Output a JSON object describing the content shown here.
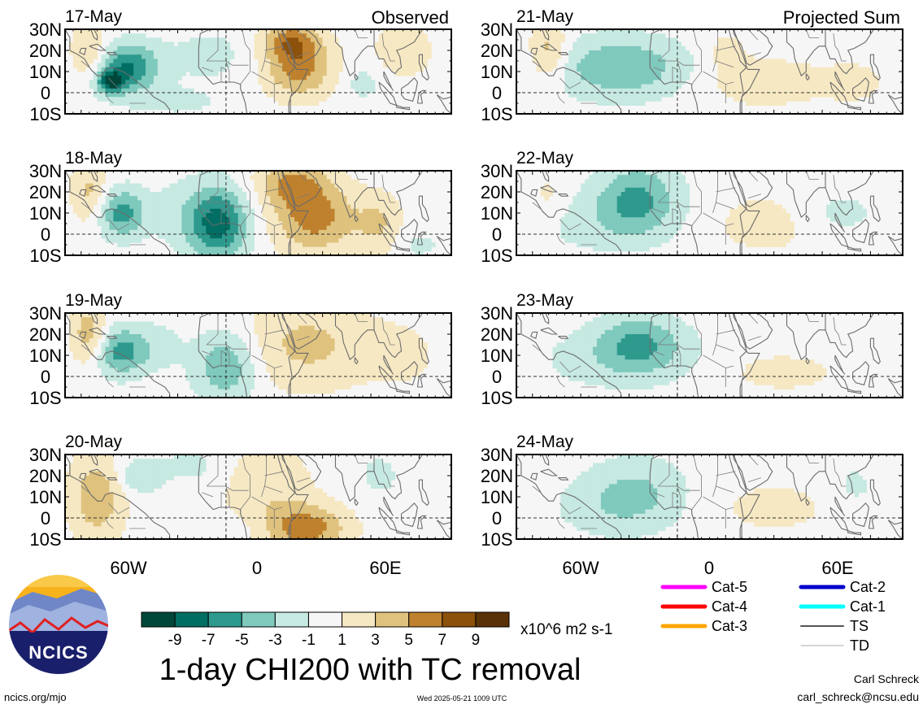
{
  "title": "1-day CHI200 with TC removal",
  "units": "x10^6 m2 s-1",
  "footer": {
    "site": "ncics.org/mjo",
    "timestamp": "Wed 2025-05-21 1009 UTC",
    "author": "Carl Schreck",
    "email": "carl_schreck@ncsu.edu"
  },
  "logo": {
    "text": "NCICS"
  },
  "columns": [
    {
      "heading": "Observed"
    },
    {
      "heading": "Projected Sum"
    }
  ],
  "lat_labels": [
    "30N",
    "20N",
    "10N",
    "0",
    "10S"
  ],
  "lon_labels": [
    "60W",
    "0",
    "60E"
  ],
  "colorbar": {
    "labels": [
      "-9",
      "-7",
      "-5",
      "-3",
      "-1",
      "1",
      "3",
      "5",
      "7",
      "9"
    ],
    "colors": [
      "#00473a",
      "#006e63",
      "#2e9a8e",
      "#7fc9bd",
      "#c6e9e2",
      "#f6f6f6",
      "#f6e8c3",
      "#dfc27d",
      "#bf812d",
      "#8c510a",
      "#5a3207"
    ]
  },
  "tc_legend": [
    {
      "label": "Cat-5",
      "color": "#ff00ff"
    },
    {
      "label": "Cat-2",
      "color": "#0000cc"
    },
    {
      "label": "Cat-4",
      "color": "#ff0000"
    },
    {
      "label": "Cat-1",
      "color": "#00ffff"
    },
    {
      "label": "Cat-3",
      "color": "#ffa500"
    },
    {
      "label": "TS",
      "color": "#555555"
    },
    {
      "label": "TD",
      "color": "#aaaaaa"
    }
  ],
  "panels": [
    {
      "date": "17-May",
      "column": 0,
      "row": 0,
      "blobs": [
        [
          -60,
          12,
          13,
          8,
          -7
        ],
        [
          -72,
          5,
          6,
          4,
          -8
        ],
        [
          -10,
          18,
          20,
          10,
          -1.5
        ],
        [
          45,
          12,
          15,
          10,
          6
        ],
        [
          40,
          25,
          12,
          6,
          5
        ],
        [
          -85,
          20,
          8,
          10,
          3
        ],
        [
          -30,
          -5,
          25,
          6,
          -1.2
        ],
        [
          110,
          20,
          15,
          10,
          2
        ],
        [
          85,
          5,
          8,
          6,
          -2
        ]
      ]
    },
    {
      "date": "21-May",
      "column": 1,
      "row": 0,
      "blobs": [
        [
          -35,
          12,
          28,
          10,
          -5
        ],
        [
          -80,
          20,
          8,
          10,
          4
        ],
        [
          55,
          5,
          25,
          8,
          2.5
        ],
        [
          110,
          5,
          15,
          8,
          1.5
        ],
        [
          30,
          20,
          10,
          8,
          1.5
        ]
      ]
    },
    {
      "date": "18-May",
      "column": 0,
      "row": 1,
      "blobs": [
        [
          -65,
          10,
          10,
          8,
          -6
        ],
        [
          -5,
          5,
          13,
          12,
          -8
        ],
        [
          55,
          8,
          18,
          12,
          6
        ],
        [
          40,
          25,
          15,
          8,
          4.5
        ],
        [
          -85,
          20,
          8,
          10,
          3.5
        ],
        [
          95,
          5,
          10,
          10,
          3
        ],
        [
          -30,
          10,
          15,
          12,
          -1.5
        ],
        [
          120,
          -5,
          10,
          5,
          -1.5
        ]
      ]
    },
    {
      "date": "22-May",
      "column": 1,
      "row": 1,
      "blobs": [
        [
          -25,
          16,
          18,
          12,
          -5.5
        ],
        [
          -55,
          5,
          25,
          10,
          -1.5
        ],
        [
          55,
          5,
          22,
          10,
          2
        ],
        [
          -80,
          18,
          8,
          8,
          1.5
        ],
        [
          100,
          10,
          20,
          8,
          -1.5
        ]
      ]
    },
    {
      "date": "19-May",
      "column": 0,
      "row": 2,
      "blobs": [
        [
          -65,
          12,
          12,
          8,
          -6
        ],
        [
          0,
          5,
          14,
          12,
          -5
        ],
        [
          -85,
          20,
          8,
          10,
          4.5
        ],
        [
          50,
          15,
          30,
          15,
          3.5
        ],
        [
          -40,
          15,
          10,
          8,
          -1.5
        ],
        [
          110,
          10,
          15,
          10,
          1.5
        ]
      ]
    },
    {
      "date": "23-May",
      "column": 1,
      "row": 2,
      "blobs": [
        [
          -25,
          15,
          18,
          10,
          -5
        ],
        [
          -55,
          8,
          25,
          10,
          -1.5
        ],
        [
          65,
          2,
          30,
          8,
          1.5
        ],
        [
          0,
          10,
          20,
          10,
          -1
        ]
      ]
    },
    {
      "date": "20-May",
      "column": 0,
      "row": 3,
      "blobs": [
        [
          -80,
          10,
          12,
          15,
          4.5
        ],
        [
          -55,
          20,
          10,
          6,
          -3
        ],
        [
          50,
          -5,
          18,
          8,
          6
        ],
        [
          25,
          15,
          20,
          15,
          2.5
        ],
        [
          -20,
          25,
          15,
          8,
          -1.5
        ],
        [
          95,
          20,
          10,
          8,
          -1.5
        ],
        [
          -5,
          -5,
          20,
          5,
          -1.2
        ]
      ]
    },
    {
      "date": "24-May",
      "column": 1,
      "row": 3,
      "blobs": [
        [
          -25,
          12,
          22,
          12,
          -3
        ],
        [
          -45,
          5,
          25,
          10,
          -1.5
        ],
        [
          60,
          5,
          30,
          10,
          1.5
        ],
        [
          110,
          15,
          10,
          8,
          -1.5
        ]
      ]
    }
  ]
}
